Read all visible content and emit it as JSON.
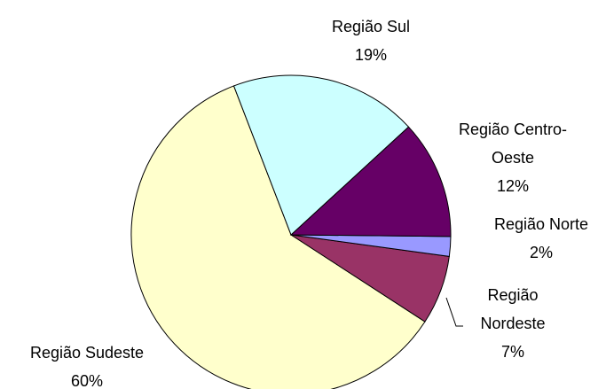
{
  "chart_data": {
    "type": "pie",
    "categories": [
      "Região Sul",
      "Região Centro-Oeste",
      "Região Norte",
      "Região Nordeste",
      "Região Sudeste"
    ],
    "values": [
      19,
      12,
      2,
      7,
      60
    ],
    "value_labels": [
      "19%",
      "12%",
      "2%",
      "7%",
      "60%"
    ],
    "colors": [
      "#ccffff",
      "#660066",
      "#9999ff",
      "#993366",
      "#ffffcc"
    ]
  }
}
